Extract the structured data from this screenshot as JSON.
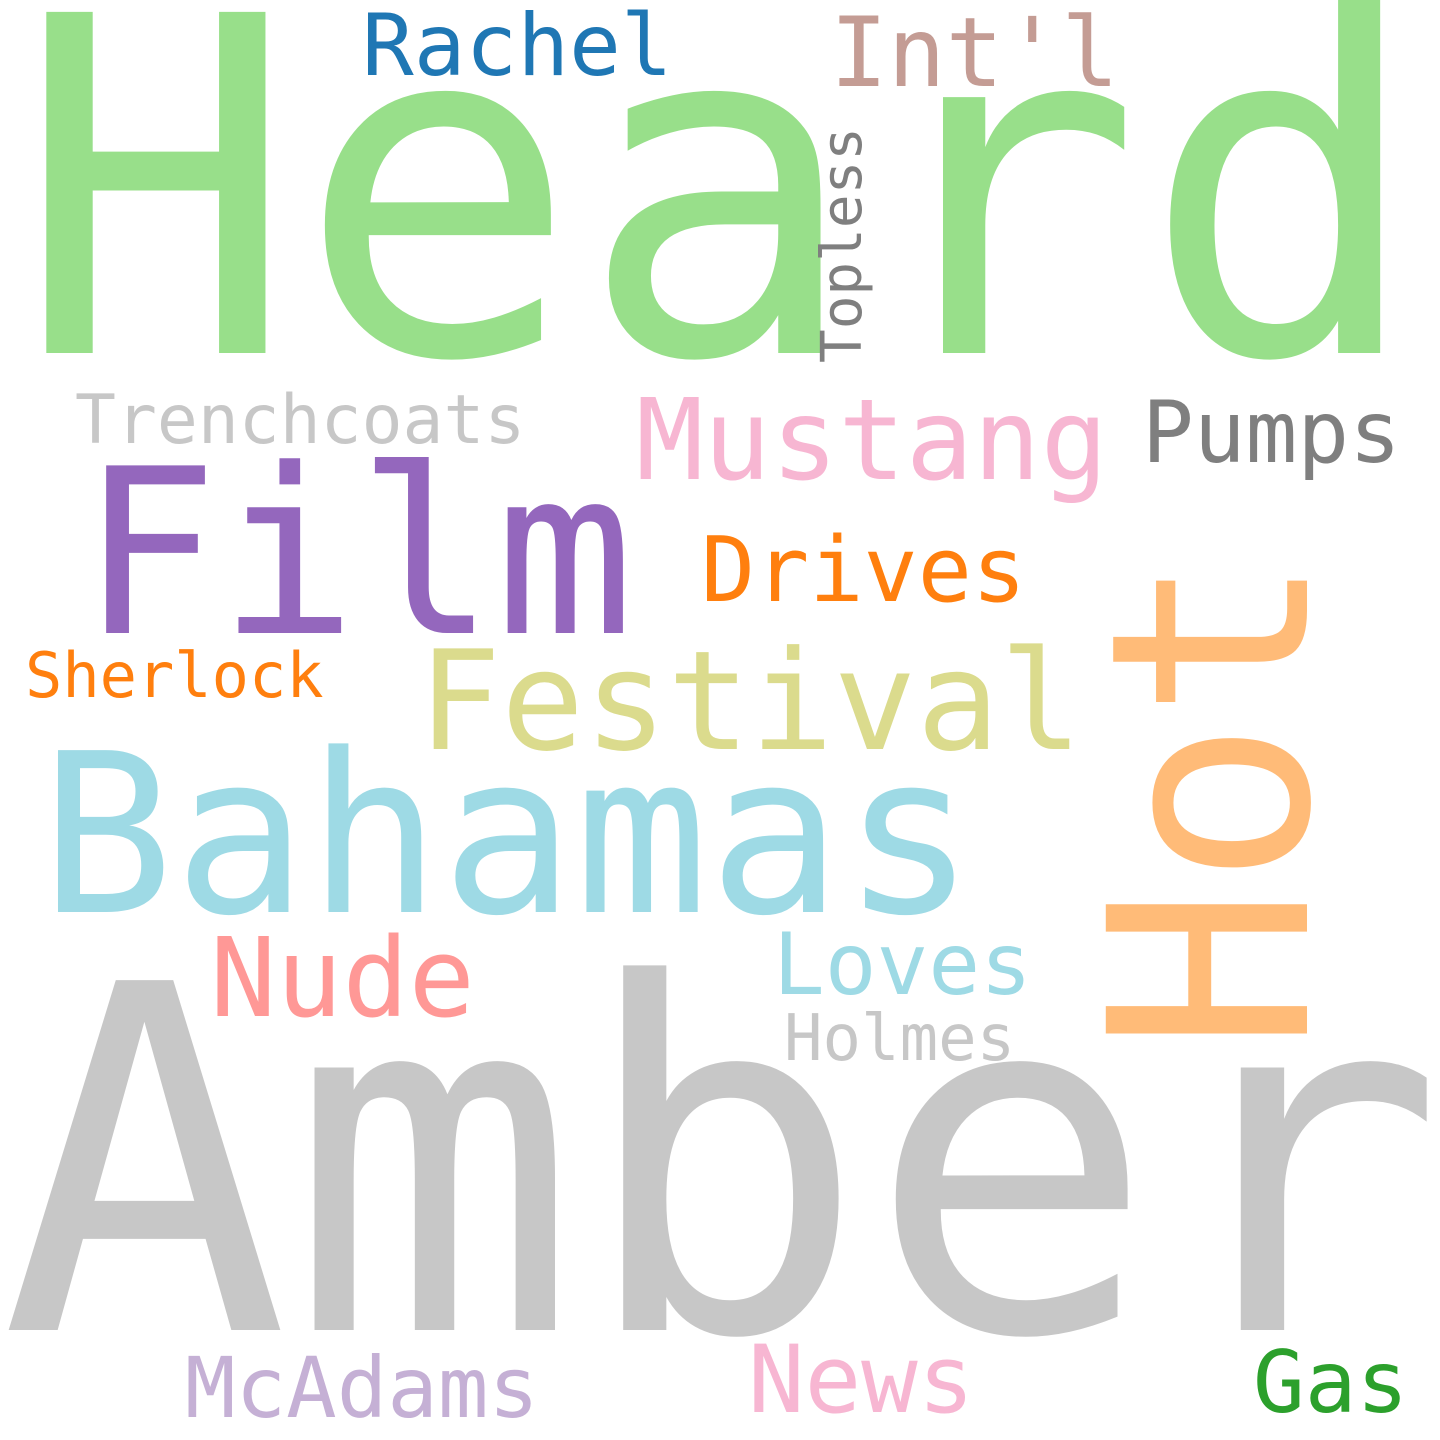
{
  "words": {
    "heard": {
      "text": "Heard",
      "color": "#98df8a"
    },
    "amber": {
      "text": "Amber",
      "color": "#c7c7c7"
    },
    "bahamas": {
      "text": "Bahamas",
      "color": "#9edae5"
    },
    "film": {
      "text": "Film",
      "color": "#9467bd"
    },
    "festival": {
      "text": "Festival",
      "color": "#dbdb8d"
    },
    "hot": {
      "text": "Hot",
      "color": "#ffbb78",
      "orientation": "vertical"
    },
    "mustang": {
      "text": "Mustang",
      "color": "#f7b6d2"
    },
    "pumps": {
      "text": "Pumps",
      "color": "#7f7f7f"
    },
    "drives": {
      "text": "Drives",
      "color": "#ff7f0e"
    },
    "nude": {
      "text": "Nude",
      "color": "#ff9896"
    },
    "loves": {
      "text": "Loves",
      "color": "#9edae5"
    },
    "holmes": {
      "text": "Holmes",
      "color": "#c7c7c7"
    },
    "rachel": {
      "text": "Rachel",
      "color": "#1f77b4"
    },
    "intl": {
      "text": "Int'l",
      "color": "#c49c94"
    },
    "topless": {
      "text": "Topless",
      "color": "#7f7f7f",
      "orientation": "vertical"
    },
    "trenchcoats": {
      "text": "Trenchcoats",
      "color": "#c7c7c7"
    },
    "sherlock": {
      "text": "Sherlock",
      "color": "#ff7f0e"
    },
    "mcadams": {
      "text": "McAdams",
      "color": "#c5b0d5"
    },
    "news": {
      "text": "News",
      "color": "#f7b6d2"
    },
    "gas": {
      "text": "Gas",
      "color": "#2ca02c"
    }
  }
}
